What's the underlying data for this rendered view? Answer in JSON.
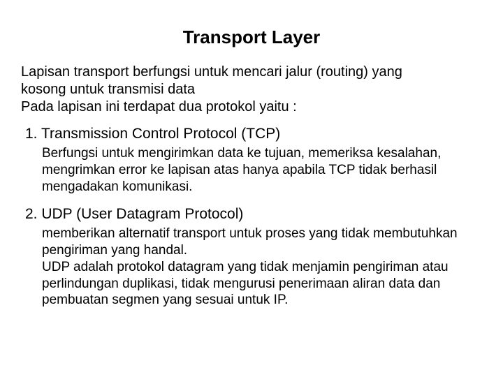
{
  "colors": {
    "background": "#ffffff",
    "text": "#000000"
  },
  "typography": {
    "family": "Arial",
    "title_size_pt": 26,
    "title_weight": "bold",
    "intro_size_pt": 20,
    "heading_size_pt": 21,
    "body_size_pt": 19
  },
  "title": "Transport Layer",
  "intro_line1": "Lapisan transport berfungsi untuk mencari jalur (routing) yang",
  "intro_line2": "kosong untuk transmisi data",
  "intro_line3": "Pada lapisan ini terdapat dua protokol yaitu :",
  "items": [
    {
      "heading": "1. Transmission Control Protocol (TCP)",
      "body": "Berfungsi untuk mengirimkan data ke tujuan, memeriksa kesalahan, mengrimkan error ke lapisan atas hanya apabila TCP tidak berhasil mengadakan komunikasi."
    },
    {
      "heading": "2. UDP (User Datagram Protocol)",
      "body": "memberikan alternatif transport untuk proses yang tidak membutuhkan pengiriman yang handal.\nUDP adalah protokol datagram yang tidak menjamin pengiriman atau perlindungan duplikasi, tidak mengurusi penerimaan aliran data dan pembuatan segmen yang sesuai untuk IP."
    }
  ]
}
